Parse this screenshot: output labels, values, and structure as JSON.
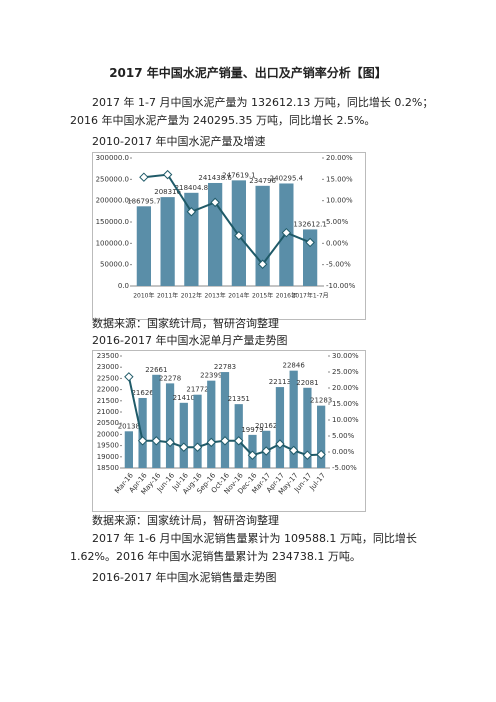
{
  "title": "2017 年中国水泥产销量、出口及产销率分析【图】",
  "paragraphs": [
    "2017 年 1-7 月中国水泥产量为 132612.13 万吨，同比增长 0.2%；2016 年中国水泥产量为 240295.35 万吨，同比增长 2.5%。",
    "2017 年 1-6 月中国水泥销售量累计为 109588.1 万吨，同比增长 1.62%。2016 年中国水泥销售量累计为 234738.1 万吨。"
  ],
  "source_notes": [
    "数据来源：国家统计局，智研咨询整理",
    "数据来源：国家统计局，智研咨询整理"
  ],
  "heading": "2016-2017 年中国水泥销售量走势图",
  "chart_data": [
    {
      "type": "bar-line",
      "title": "2010-2017 年中国水泥产量及增速",
      "categories": [
        "2010年",
        "2011年",
        "2012年",
        "2013年",
        "2014年",
        "2015年",
        "2016年",
        "2017年1-7月"
      ],
      "series": [
        {
          "color": "#5a8ea8",
          "values": [
            186795.7,
            208316,
            218404.8,
            241438.6,
            247619.1,
            234796,
            240295.4,
            132612.1
          ]
        },
        {
          "color": "#1f5a68",
          "axis": "y2",
          "values": [
            15.5,
            16.1,
            7.4,
            9.6,
            1.8,
            -4.9,
            2.5,
            0.2
          ]
        }
      ],
      "ylim": [
        0,
        300000
      ],
      "yticks": [
        {
          "value": 0,
          "label": "0.0"
        },
        {
          "value": 50000,
          "label": "50000.0"
        },
        {
          "value": 100000,
          "label": "100000.0"
        },
        {
          "value": 150000,
          "label": "150000.0"
        },
        {
          "value": 200000,
          "label": "200000.0"
        },
        {
          "value": 250000,
          "label": "250000.0"
        },
        {
          "value": 300000,
          "label": "300000.0"
        }
      ],
      "y2lim": [
        -10,
        20
      ],
      "y2ticks": [
        {
          "value": -10,
          "label": "-10.00%"
        },
        {
          "value": -5,
          "label": "-5.00%"
        },
        {
          "value": 0,
          "label": "0.00%"
        },
        {
          "value": 5,
          "label": "5.00%"
        },
        {
          "value": 10,
          "label": "10.00%"
        },
        {
          "value": 15,
          "label": "15.00%"
        },
        {
          "value": 20,
          "label": "20.00%"
        }
      ],
      "grid": false,
      "rotate_labels": false
    },
    {
      "type": "bar-line",
      "title": "2016-2017 年中国水泥单月产量走势图",
      "categories": [
        "Mar-16",
        "Apr-16",
        "May-16",
        "Jun-16",
        "Jul-16",
        "Aug-16",
        "Sep-16",
        "Oct-16",
        "Nov-16",
        "Dec-16",
        "Mar-17",
        "Apr-17",
        "May-17",
        "Jun-17",
        "Jul-17"
      ],
      "series": [
        {
          "color": "#5a8ea8",
          "values": [
            20138,
            21626,
            22661,
            22278,
            21410,
            21772,
            22399,
            22783,
            21351,
            19979,
            20162,
            22113,
            22846,
            22081,
            21283
          ]
        },
        {
          "color": "#1f5a68",
          "axis": "y2",
          "values": [
            23.5,
            3.5,
            3.5,
            3,
            1.5,
            1.5,
            3,
            3.5,
            3.5,
            -1,
            0.3,
            2.5,
            0.5,
            -1,
            -0.8
          ]
        }
      ],
      "ylim": [
        18500,
        23500
      ],
      "yticks": [
        18500,
        19000,
        19500,
        20000,
        20500,
        21000,
        21500,
        22000,
        22500,
        23000,
        23500
      ],
      "y2lim": [
        -5,
        30
      ],
      "y2ticks": [
        {
          "value": -5,
          "label": "-5.00%"
        },
        {
          "value": 0,
          "label": "0.00%"
        },
        {
          "value": 5,
          "label": "5.00%"
        },
        {
          "value": 10,
          "label": "10.00%"
        },
        {
          "value": 15,
          "label": "15.00%"
        },
        {
          "value": 20,
          "label": "20.00%"
        },
        {
          "value": 25,
          "label": "25.00%"
        },
        {
          "value": 30,
          "label": "30.00%"
        }
      ],
      "grid": false,
      "rotate_labels": true
    }
  ]
}
